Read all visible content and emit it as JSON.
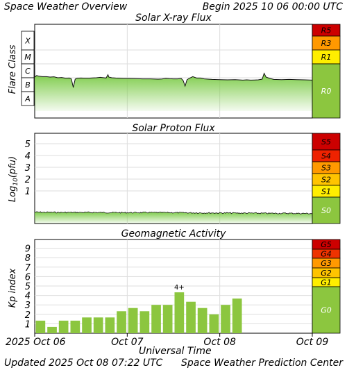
{
  "header": {
    "title": "Space Weather Overview",
    "begin": "Begin 2025 10 06 00:00 UTC"
  },
  "footer": {
    "updated": "Updated 2025 Oct 08 07:22 UTC",
    "source": "Space Weather Prediction Center",
    "xlabel": "Universal Time",
    "x_ticks": [
      "2025 Oct 06",
      "Oct 07",
      "Oct 08",
      "Oct 09"
    ]
  },
  "colors": {
    "fill_green": "#7ccb48",
    "scale_green": "#8cc63f",
    "red": "#cc0000",
    "dark_orange": "#ee5500",
    "orange": "#ff9900",
    "yellow_orange": "#ffc400",
    "yellow": "#ffee00",
    "grid": "#dddddd"
  },
  "chart_data": [
    {
      "type": "area",
      "title": "Solar X-ray Flux",
      "ylabel": "Flare Class",
      "y_categories": [
        "A",
        "B",
        "C",
        "M",
        "X"
      ],
      "x_range": [
        "2025-10-06 00:00",
        "2025-10-09 00:00"
      ],
      "series": [
        {
          "x_hours": [
            0,
            0.5,
            1,
            2,
            3,
            4,
            5,
            6,
            7,
            8,
            9,
            9.5,
            10,
            10.5,
            11,
            12,
            13,
            14,
            15,
            16,
            17,
            18,
            18.5,
            19,
            19.2,
            20,
            21,
            22,
            23,
            24,
            26,
            28,
            30,
            32,
            33,
            34,
            35,
            36,
            37,
            38,
            38.5,
            39,
            39.5,
            40,
            41,
            42,
            43,
            44,
            46,
            48,
            50,
            52,
            54,
            55,
            56,
            57,
            58,
            59,
            59.5,
            60,
            61,
            62,
            64,
            66,
            68,
            70,
            72,
            73.2
          ],
          "class_level": [
            1.55,
            1.66,
            1.62,
            1.58,
            1.58,
            1.55,
            1.57,
            1.5,
            1.52,
            1.47,
            1.48,
            1.42,
            0.8,
            1.4,
            1.47,
            1.48,
            1.47,
            1.47,
            1.49,
            1.5,
            1.53,
            1.5,
            1.48,
            1.72,
            1.55,
            1.5,
            1.48,
            1.47,
            1.45,
            1.45,
            1.44,
            1.42,
            1.42,
            1.4,
            1.41,
            1.45,
            1.43,
            1.42,
            1.42,
            1.45,
            1.3,
            0.9,
            1.35,
            1.45,
            1.58,
            1.48,
            1.48,
            1.42,
            1.38,
            1.36,
            1.35,
            1.36,
            1.33,
            1.35,
            1.33,
            1.34,
            1.35,
            1.4,
            1.82,
            1.55,
            1.45,
            1.38,
            1.36,
            1.38,
            1.36,
            1.35,
            1.33,
            1.33
          ]
        }
      ],
      "scale": [
        {
          "label": "R5",
          "color": "#cc0000"
        },
        {
          "label": "R3",
          "color": "#ff9900"
        },
        {
          "label": "R1",
          "color": "#ffee00"
        },
        {
          "label": "R0",
          "color": "#8cc63f"
        }
      ]
    },
    {
      "type": "area",
      "title": "Solar Proton Flux",
      "ylabel": "Log10(pfu)",
      "ylabel_main": "Log",
      "ylabel_sub": "10",
      "ylabel_rest": "(pfu)",
      "y_ticks": [
        "1",
        "2",
        "3",
        "4",
        "5"
      ],
      "ylim": [
        -1.5,
        5.8
      ],
      "series": [
        {
          "x_hours": [
            0,
            6,
            12,
            18,
            24,
            30,
            36,
            42,
            48,
            54,
            60,
            66,
            72,
            73.2
          ],
          "log_pfu": [
            -0.8,
            -0.82,
            -0.82,
            -0.83,
            -0.84,
            -0.83,
            -0.84,
            -0.86,
            -0.87,
            -0.88,
            -0.9,
            -0.9,
            -0.92,
            -0.92
          ]
        }
      ],
      "scale": [
        {
          "label": "S5",
          "color": "#cc0000"
        },
        {
          "label": "S4",
          "color": "#ee2200"
        },
        {
          "label": "S3",
          "color": "#ff9900"
        },
        {
          "label": "S2",
          "color": "#ffc400"
        },
        {
          "label": "S1",
          "color": "#ffee00"
        },
        {
          "label": "S0",
          "color": "#8cc63f"
        }
      ]
    },
    {
      "type": "bar",
      "title": "Geomagnetic Activity",
      "ylabel": "Kp index",
      "y_ticks": [
        "1",
        "2",
        "3",
        "4",
        "5",
        "6",
        "7",
        "8",
        "9"
      ],
      "ylim": [
        0,
        9.7
      ],
      "bar_width_hours": 3,
      "values": [
        1.33,
        0.67,
        1.33,
        1.33,
        1.67,
        1.67,
        1.67,
        2.33,
        2.67,
        2.33,
        3,
        3,
        4.33,
        3.33,
        2.67,
        2,
        3,
        3.67
      ],
      "annotations": [
        {
          "index": 12,
          "text": "4+"
        }
      ],
      "scale": [
        {
          "label": "G5",
          "color": "#cc0000"
        },
        {
          "label": "G4",
          "color": "#ee3300"
        },
        {
          "label": "G3",
          "color": "#ff9900"
        },
        {
          "label": "G2",
          "color": "#ffc400"
        },
        {
          "label": "G1",
          "color": "#ffee00"
        },
        {
          "label": "G0",
          "color": "#8cc63f"
        }
      ]
    }
  ]
}
